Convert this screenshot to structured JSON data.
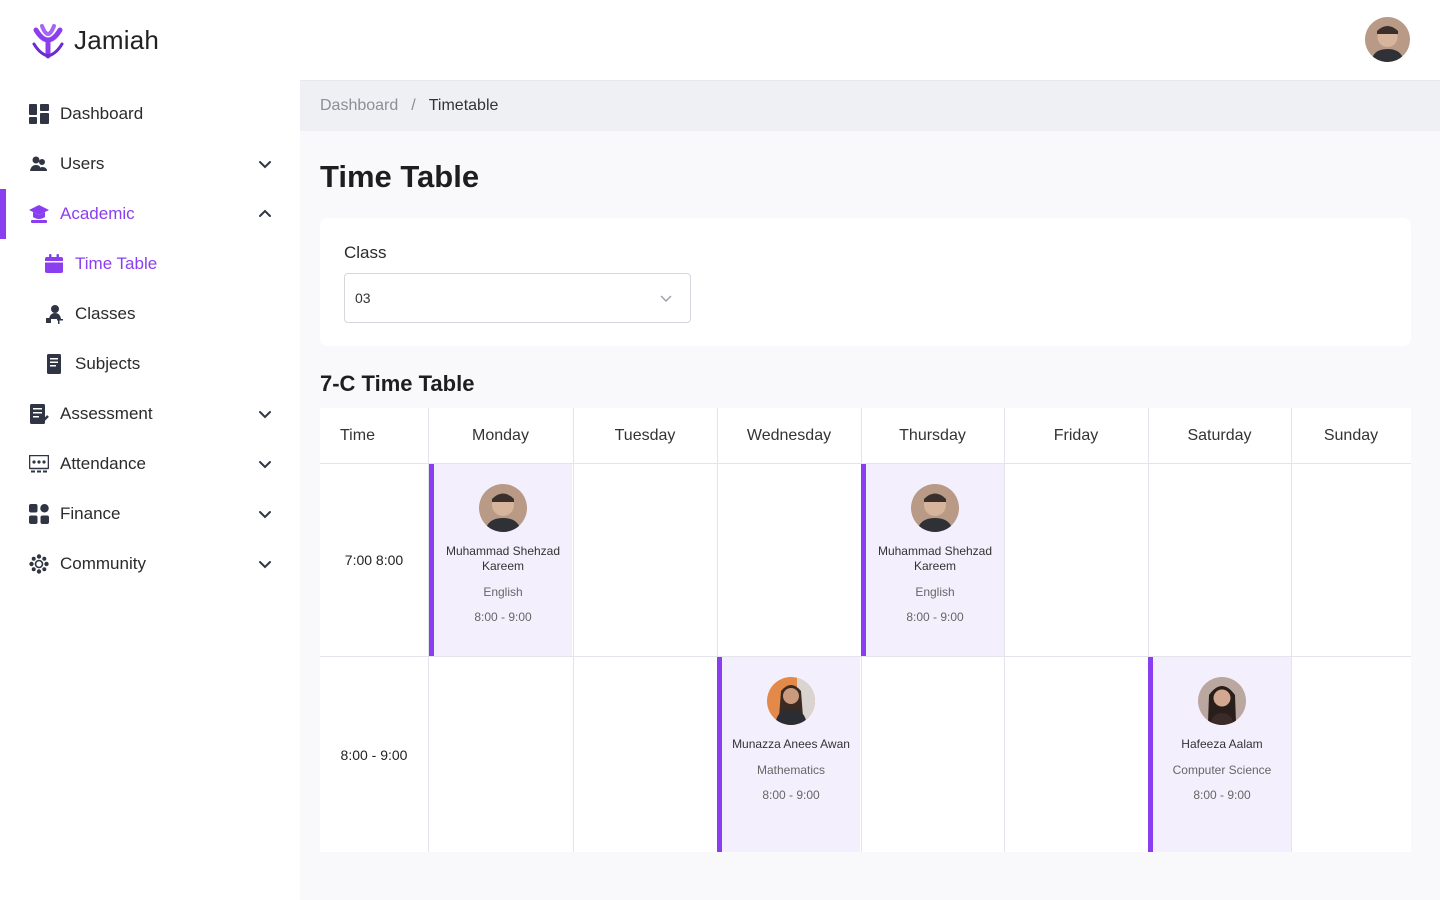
{
  "app": {
    "name": "Jamiah"
  },
  "sidebar": {
    "items": [
      {
        "label": "Dashboard"
      },
      {
        "label": "Users"
      },
      {
        "label": "Academic"
      },
      {
        "label": "Time Table"
      },
      {
        "label": "Classes"
      },
      {
        "label": "Subjects"
      },
      {
        "label": "Assessment"
      },
      {
        "label": "Attendance"
      },
      {
        "label": "Finance"
      },
      {
        "label": "Community"
      }
    ]
  },
  "breadcrumb": {
    "parent": "Dashboard",
    "separator": "/",
    "current": "Timetable"
  },
  "page": {
    "title": "Time Table"
  },
  "class_filter": {
    "label": "Class",
    "value": "03"
  },
  "timetable": {
    "title": "7-C Time Table",
    "columns": [
      "Time",
      "Monday",
      "Tuesday",
      "Wednesday",
      "Thursday",
      "Friday",
      "Saturday",
      "Sunday"
    ],
    "rows": [
      {
        "time": "7:00 8:00"
      },
      {
        "time": "8:00 - 9:00"
      }
    ],
    "lessons": [
      {
        "teacher": "Muhammad Shehzad Kareem",
        "subject": "English",
        "time": "8:00 - 9:00"
      },
      {
        "teacher": "Muhammad Shehzad Kareem",
        "subject": "English",
        "time": "8:00 - 9:00"
      },
      {
        "teacher": "Munazza Anees Awan",
        "subject": "Mathematics",
        "time": "8:00 - 9:00"
      },
      {
        "teacher": "Hafeeza Aalam",
        "subject": "Computer Science",
        "time": "8:00 - 9:00"
      }
    ]
  },
  "colors": {
    "accent": "#8b3ef0",
    "lesson_bg": "#f4effd",
    "page_bg": "#f9f9fb",
    "breadcrumb_bg": "#eef0f4"
  }
}
